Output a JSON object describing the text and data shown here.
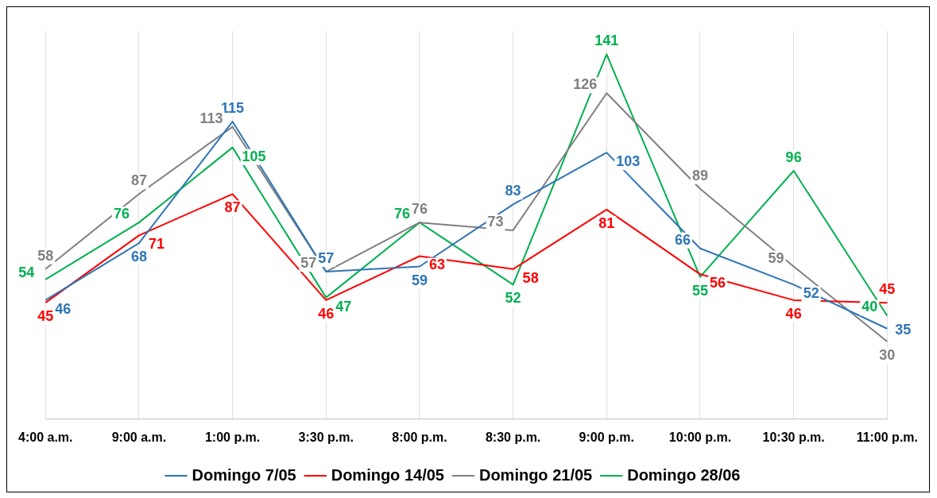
{
  "chart_data": {
    "type": "line",
    "categories": [
      "4:00 a.m.",
      "9:00 a.m.",
      "1:00 p.m.",
      "3:30 p.m.",
      "8:00 p.m.",
      "8:30 p.m.",
      "9:00 p.m.",
      "10:00 p.m.",
      "10:30 p.m.",
      "11:00 p.m."
    ],
    "series": [
      {
        "name": "Domingo 7/05",
        "color": "#2e75b6",
        "values": [
          46,
          68,
          115,
          57,
          59,
          83,
          103,
          66,
          52,
          35
        ]
      },
      {
        "name": "Domingo 14/05",
        "color": "#ff0000",
        "values": [
          45,
          71,
          87,
          46,
          63,
          58,
          81,
          56,
          46,
          45
        ]
      },
      {
        "name": "Domingo 21/05",
        "color": "#808080",
        "values": [
          58,
          87,
          113,
          57,
          76,
          73,
          126,
          89,
          59,
          30
        ]
      },
      {
        "name": "Domingo 28/06",
        "color": "#00b050",
        "values": [
          54,
          76,
          105,
          47,
          76,
          52,
          141,
          55,
          96,
          40
        ]
      }
    ],
    "ylim": [
      0,
      150
    ],
    "tick_labels": "x",
    "grid": "x",
    "legend": "bottom",
    "data_labels": true,
    "marker": "none",
    "line_style": "solid"
  }
}
